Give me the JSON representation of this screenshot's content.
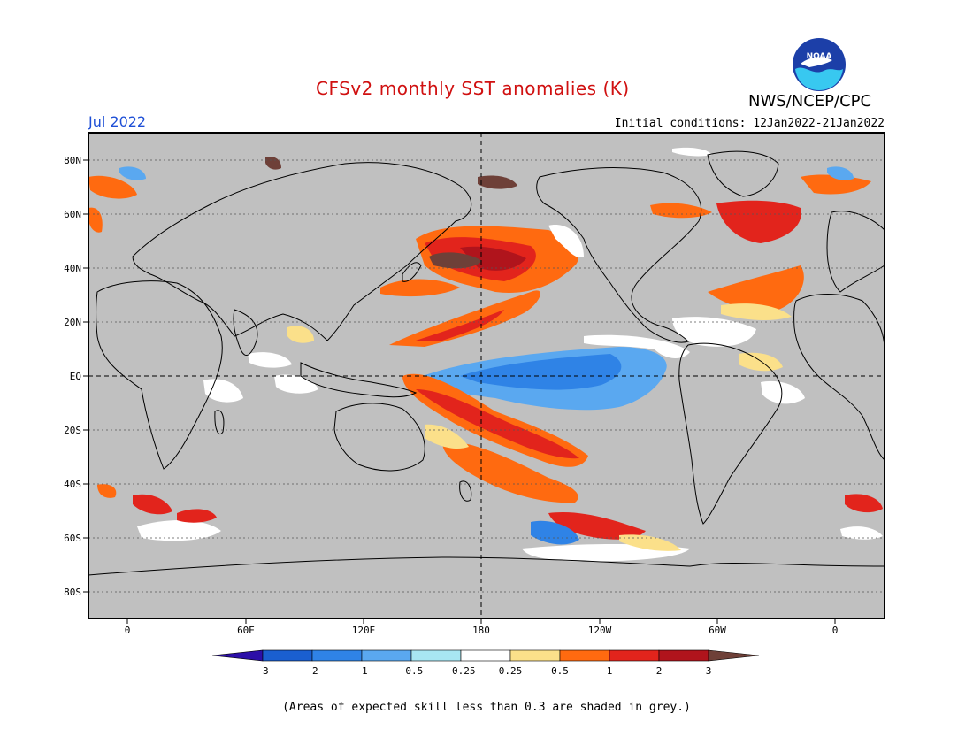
{
  "header": {
    "title": "CFSv2 monthly SST anomalies (K)",
    "month": "Jul 2022",
    "organization": "NWS/NCEP/CPC",
    "initial_conditions": "Initial conditions: 12Jan2022-21Jan2022",
    "logo_text": "NOAA"
  },
  "map": {
    "lat_labels": [
      "80N",
      "60N",
      "40N",
      "20N",
      "EQ",
      "20S",
      "40S",
      "60S",
      "80S"
    ],
    "lon_labels": [
      "0",
      "60E",
      "120E",
      "180",
      "120W",
      "60W",
      "0"
    ],
    "land_color": "#c0c0c0",
    "grid_style": "dashed",
    "center_longitude": "180"
  },
  "colorbar": {
    "tick_labels": [
      "−3",
      "−2",
      "−1",
      "−0.5",
      "−0.25",
      "0.25",
      "0.5",
      "1",
      "2",
      "3"
    ],
    "colors": [
      "#2c0fa8",
      "#1a5fd0",
      "#2f83e6",
      "#5aa8f0",
      "#a8e6f2",
      "#ffffff",
      "#fbe08a",
      "#ff6a10",
      "#e2241c",
      "#b0141c",
      "#6e4038"
    ]
  },
  "footnote": "(Areas of expected skill less than 0.3 are shaded in grey.)"
}
